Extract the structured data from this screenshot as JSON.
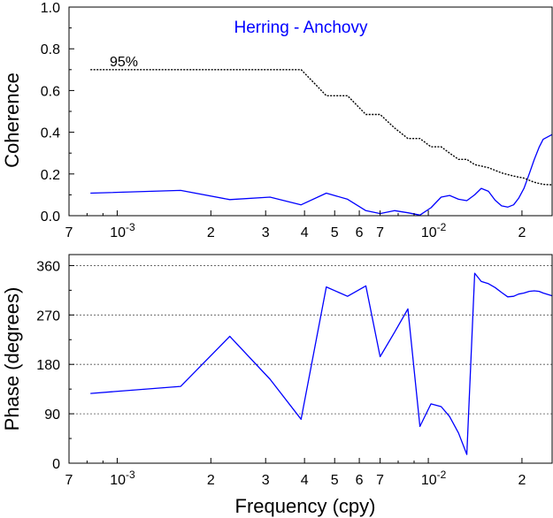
{
  "chart_data": [
    {
      "type": "line",
      "title": "Herring - Anchovy",
      "title_color": "#0000ff",
      "xlabel": "",
      "ylabel": "Coherence",
      "x_scale": "log",
      "xlim": [
        0.0007,
        0.025
      ],
      "ylim": [
        0,
        1
      ],
      "x_ticks": [
        {
          "value": 0.0007,
          "label": "7"
        },
        {
          "value": 0.001,
          "label": "10",
          "exp": "-3"
        },
        {
          "value": 0.002,
          "label": "2"
        },
        {
          "value": 0.003,
          "label": "3"
        },
        {
          "value": 0.004,
          "label": "4"
        },
        {
          "value": 0.005,
          "label": "5"
        },
        {
          "value": 0.006,
          "label": "6"
        },
        {
          "value": 0.007,
          "label": "7"
        },
        {
          "value": 0.01,
          "label": "10",
          "exp": "-2"
        },
        {
          "value": 0.02,
          "label": "2"
        }
      ],
      "y_ticks": [
        {
          "value": 0,
          "label": "0.0"
        },
        {
          "value": 0.2,
          "label": "0.2"
        },
        {
          "value": 0.4,
          "label": "0.4"
        },
        {
          "value": 0.6,
          "label": "0.6"
        },
        {
          "value": 0.8,
          "label": "0.8"
        },
        {
          "value": 1.0,
          "label": "1.0"
        }
      ],
      "grid": false,
      "series": [
        {
          "style": "solid",
          "color": "#0000ff",
          "points": [
            [
              0.00082,
              0.108
            ],
            [
              0.0016,
              0.121
            ],
            [
              0.0023,
              0.077
            ],
            [
              0.0031,
              0.089
            ],
            [
              0.0039,
              0.052
            ],
            [
              0.0047,
              0.108
            ],
            [
              0.0055,
              0.079
            ],
            [
              0.0063,
              0.024
            ],
            [
              0.007,
              0.01
            ],
            [
              0.0078,
              0.024
            ],
            [
              0.0086,
              0.014
            ],
            [
              0.0094,
              0.003
            ],
            [
              0.0102,
              0.038
            ],
            [
              0.011,
              0.089
            ],
            [
              0.0117,
              0.097
            ],
            [
              0.0125,
              0.079
            ],
            [
              0.0133,
              0.072
            ],
            [
              0.0141,
              0.1
            ],
            [
              0.0148,
              0.131
            ],
            [
              0.0156,
              0.117
            ],
            [
              0.0164,
              0.074
            ],
            [
              0.0172,
              0.047
            ],
            [
              0.018,
              0.041
            ],
            [
              0.0188,
              0.052
            ],
            [
              0.0195,
              0.083
            ],
            [
              0.0203,
              0.131
            ],
            [
              0.0211,
              0.2
            ],
            [
              0.0219,
              0.269
            ],
            [
              0.0227,
              0.328
            ],
            [
              0.0234,
              0.366
            ],
            [
              0.025,
              0.389
            ]
          ]
        },
        {
          "style": "dotted",
          "color": "#000000",
          "points": [
            [
              0.00082,
              0.7
            ],
            [
              0.0039,
              0.7
            ],
            [
              0.0044,
              0.62
            ],
            [
              0.0047,
              0.575
            ],
            [
              0.0055,
              0.575
            ],
            [
              0.0063,
              0.485
            ],
            [
              0.007,
              0.485
            ],
            [
              0.0078,
              0.42
            ],
            [
              0.0086,
              0.37
            ],
            [
              0.0094,
              0.37
            ],
            [
              0.0102,
              0.33
            ],
            [
              0.011,
              0.33
            ],
            [
              0.0117,
              0.3
            ],
            [
              0.0125,
              0.27
            ],
            [
              0.0133,
              0.27
            ],
            [
              0.0141,
              0.245
            ],
            [
              0.0156,
              0.23
            ],
            [
              0.0172,
              0.205
            ],
            [
              0.0188,
              0.19
            ],
            [
              0.0203,
              0.18
            ],
            [
              0.0219,
              0.16
            ],
            [
              0.0234,
              0.15
            ],
            [
              0.025,
              0.148
            ]
          ]
        }
      ],
      "annotations": [
        {
          "text": "95%",
          "x": 0.00105,
          "y": 0.735
        }
      ]
    },
    {
      "type": "line",
      "title": "",
      "xlabel": "Frequency (cpy)",
      "ylabel": "Phase (degrees)",
      "x_scale": "log",
      "xlim": [
        0.0007,
        0.025
      ],
      "ylim": [
        0,
        380
      ],
      "x_ticks": [
        {
          "value": 0.0007,
          "label": "7"
        },
        {
          "value": 0.001,
          "label": "10",
          "exp": "-3"
        },
        {
          "value": 0.002,
          "label": "2"
        },
        {
          "value": 0.003,
          "label": "3"
        },
        {
          "value": 0.004,
          "label": "4"
        },
        {
          "value": 0.005,
          "label": "5"
        },
        {
          "value": 0.006,
          "label": "6"
        },
        {
          "value": 0.007,
          "label": "7"
        },
        {
          "value": 0.01,
          "label": "10",
          "exp": "-2"
        },
        {
          "value": 0.02,
          "label": "2"
        }
      ],
      "y_ticks": [
        {
          "value": 0,
          "label": "0"
        },
        {
          "value": 90,
          "label": "90"
        },
        {
          "value": 180,
          "label": "180"
        },
        {
          "value": 270,
          "label": "270"
        },
        {
          "value": 360,
          "label": "360"
        }
      ],
      "grid": true,
      "grid_lines": [
        90,
        180,
        270,
        360
      ],
      "series": [
        {
          "style": "solid",
          "color": "#0000ff",
          "points": [
            [
              0.00082,
              127
            ],
            [
              0.0016,
              140
            ],
            [
              0.0023,
              231
            ],
            [
              0.0031,
              153
            ],
            [
              0.0039,
              80
            ],
            [
              0.0047,
              321
            ],
            [
              0.0055,
              304
            ],
            [
              0.0063,
              323
            ],
            [
              0.007,
              194
            ],
            [
              0.0078,
              239
            ],
            [
              0.0086,
              281
            ],
            [
              0.0094,
              67
            ],
            [
              0.0102,
              108
            ],
            [
              0.011,
              103
            ],
            [
              0.0117,
              85
            ],
            [
              0.0125,
              55
            ],
            [
              0.0133,
              16
            ],
            [
              0.0141,
              346
            ],
            [
              0.0148,
              331
            ],
            [
              0.0156,
              327
            ],
            [
              0.0164,
              320
            ],
            [
              0.0172,
              311
            ],
            [
              0.018,
              303
            ],
            [
              0.0188,
              304
            ],
            [
              0.0195,
              308
            ],
            [
              0.0203,
              310
            ],
            [
              0.0211,
              313
            ],
            [
              0.0219,
              314
            ],
            [
              0.0227,
              313
            ],
            [
              0.0234,
              310
            ],
            [
              0.025,
              305
            ]
          ]
        }
      ]
    }
  ]
}
